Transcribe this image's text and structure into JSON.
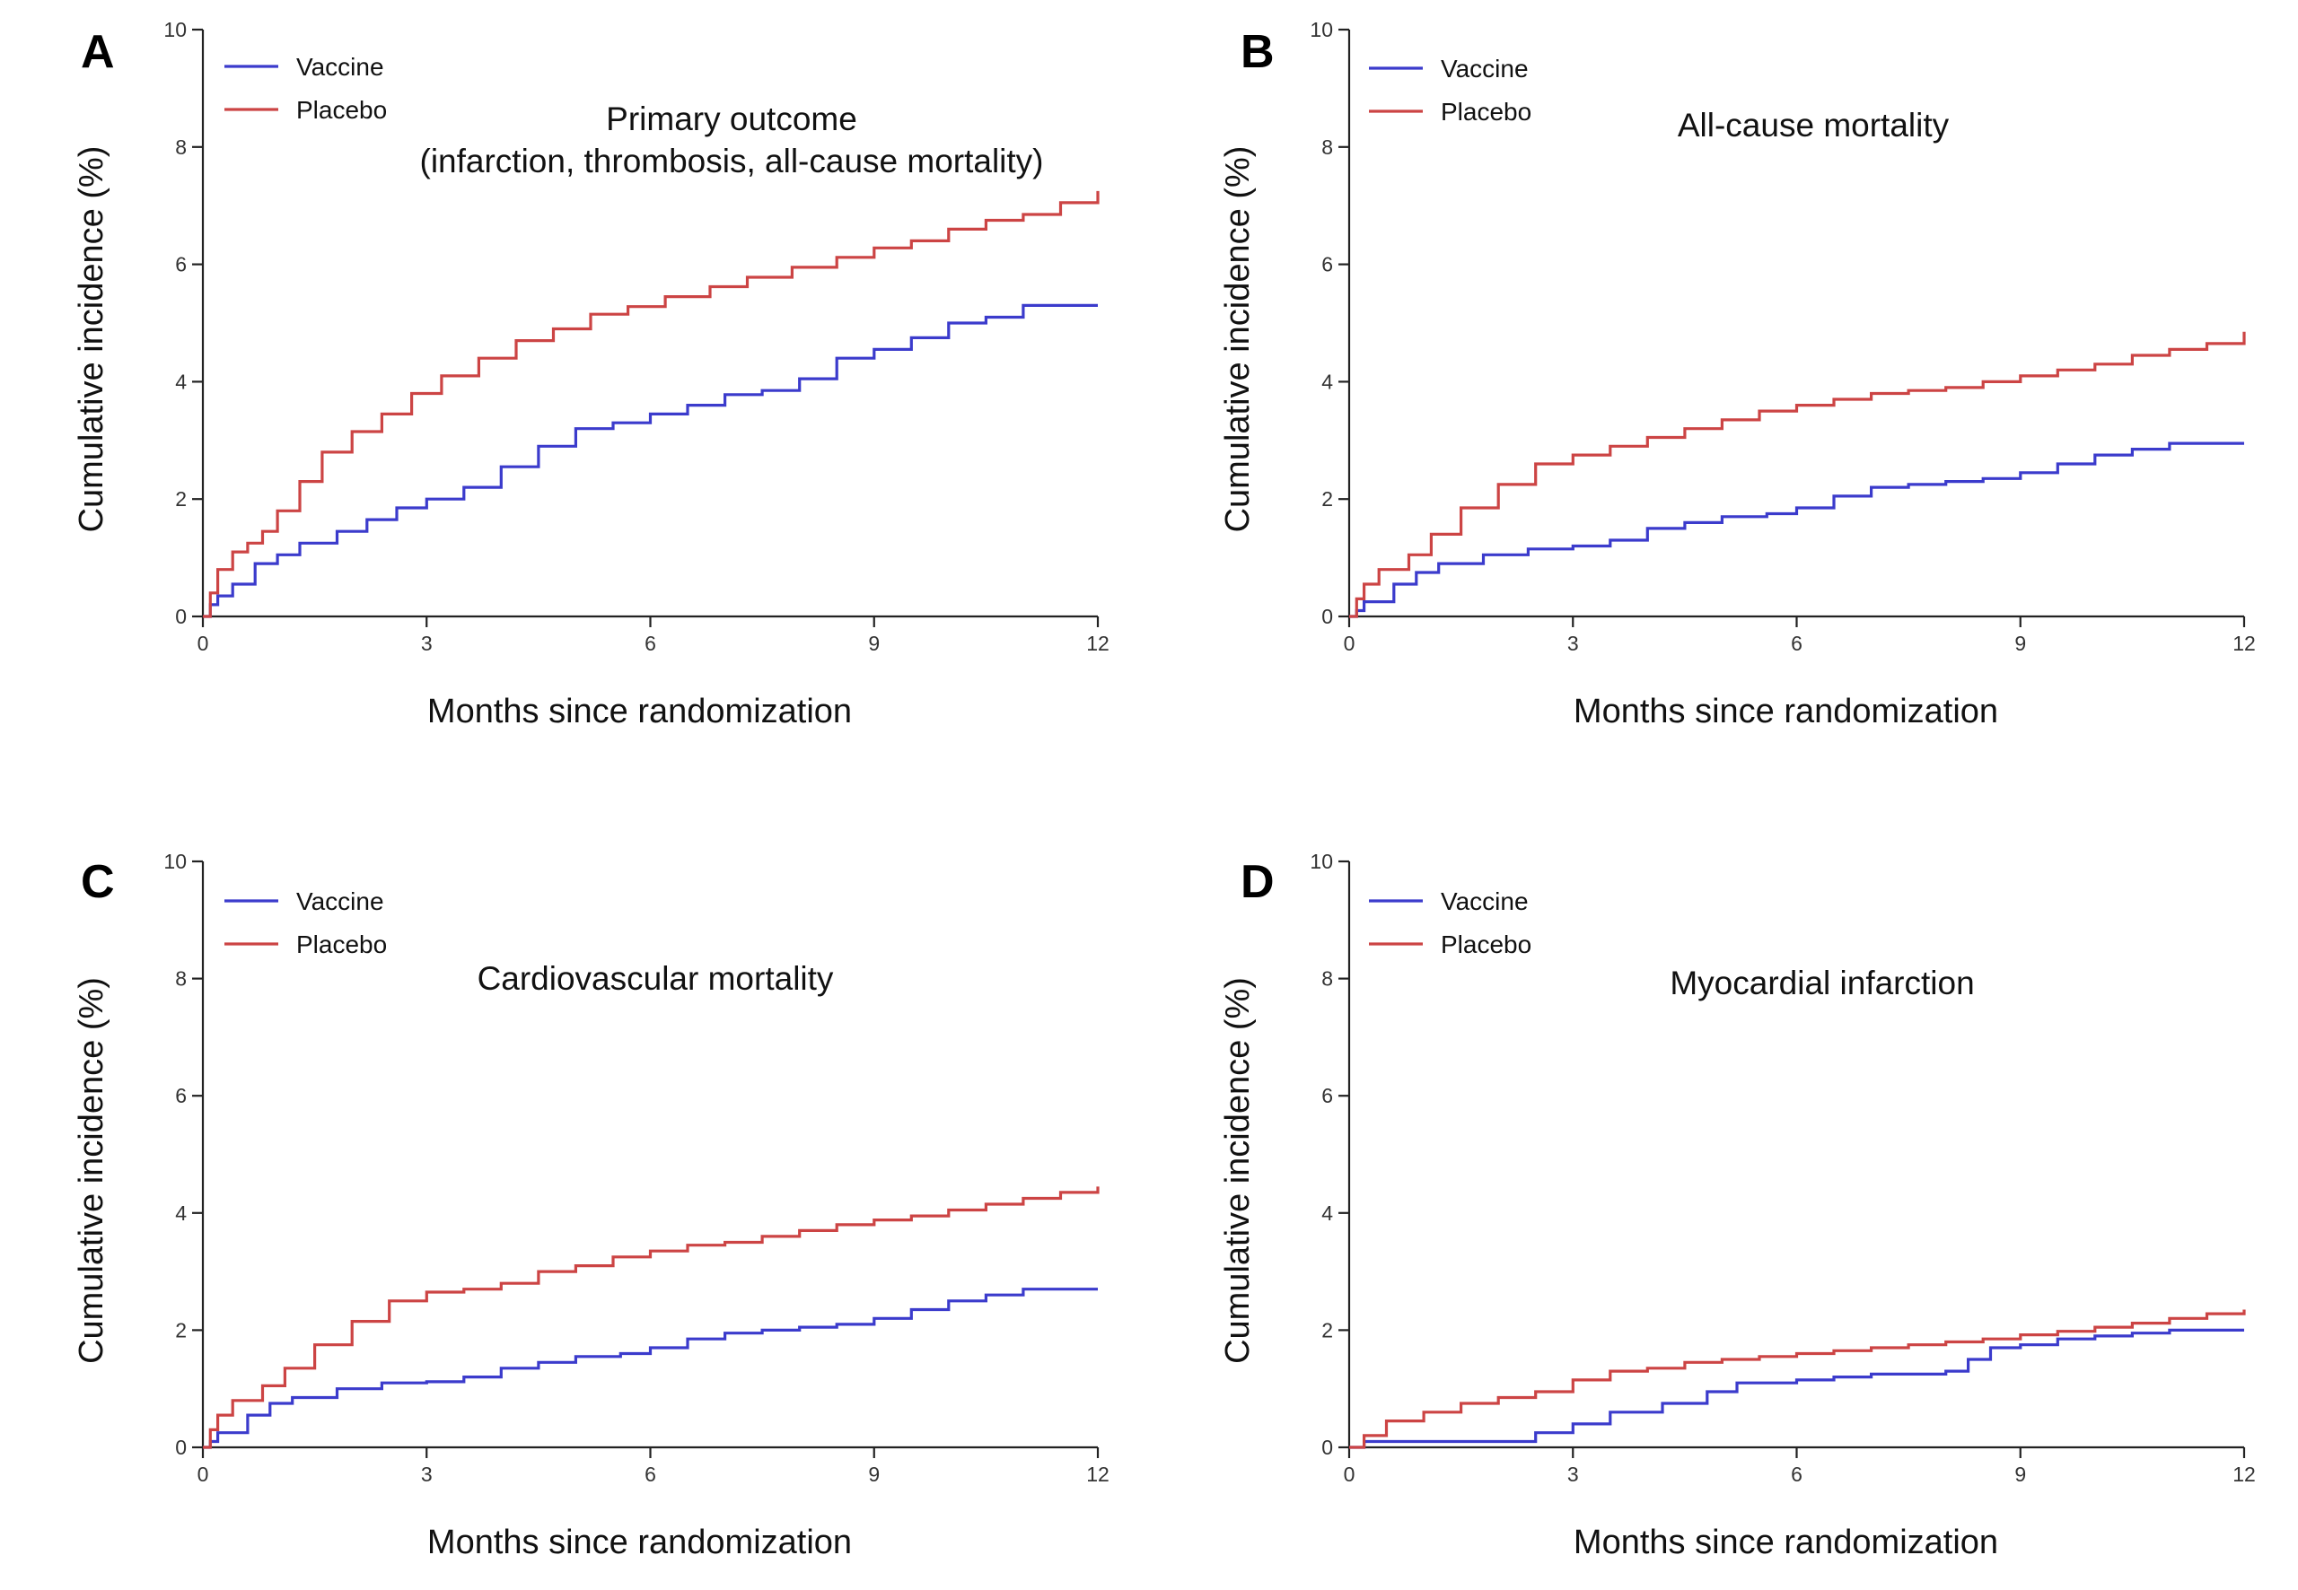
{
  "figure": {
    "colors": {
      "vaccine": "#3b3bcc",
      "placebo": "#cc4444",
      "axis": "#222222"
    }
  },
  "chart_data": [
    {
      "panel": "A",
      "type": "line",
      "title_lines": [
        "Primary outcome",
        "(infarction, thrombosis, all-cause mortality)"
      ],
      "xlabel": "Months since randomization",
      "ylabel": "Cumulative incidence (%)",
      "xlim": [
        0,
        12
      ],
      "ylim": [
        0,
        10
      ],
      "xticks": [
        0,
        3,
        6,
        9,
        12
      ],
      "yticks": [
        0,
        2,
        4,
        6,
        8,
        10
      ],
      "grid": false,
      "legend_position": "top-left",
      "series": [
        {
          "name": "Vaccine",
          "color": "#3b3bcc",
          "x": [
            0,
            0.1,
            0.2,
            0.4,
            0.7,
            1.0,
            1.3,
            1.8,
            2.2,
            2.6,
            3.0,
            3.5,
            4.0,
            4.5,
            5.0,
            5.5,
            6.0,
            6.5,
            7.0,
            7.5,
            8.0,
            8.5,
            9.0,
            9.5,
            10.0,
            10.5,
            11.0,
            12.0
          ],
          "y": [
            0,
            0.2,
            0.35,
            0.55,
            0.9,
            1.05,
            1.25,
            1.45,
            1.65,
            1.85,
            2.0,
            2.2,
            2.55,
            2.9,
            3.2,
            3.3,
            3.45,
            3.6,
            3.78,
            3.85,
            4.05,
            4.4,
            4.55,
            4.75,
            5.0,
            5.1,
            5.3,
            5.3
          ]
        },
        {
          "name": "Placebo",
          "color": "#cc4444",
          "x": [
            0,
            0.1,
            0.2,
            0.4,
            0.6,
            0.8,
            1.0,
            1.3,
            1.6,
            2.0,
            2.4,
            2.8,
            3.2,
            3.7,
            4.2,
            4.7,
            5.2,
            5.7,
            6.2,
            6.8,
            7.3,
            7.9,
            8.5,
            9.0,
            9.5,
            10.0,
            10.5,
            11.0,
            11.5,
            12.0
          ],
          "y": [
            0,
            0.4,
            0.8,
            1.1,
            1.25,
            1.45,
            1.8,
            2.3,
            2.8,
            3.15,
            3.45,
            3.8,
            4.1,
            4.4,
            4.7,
            4.9,
            5.15,
            5.28,
            5.45,
            5.62,
            5.78,
            5.95,
            6.12,
            6.28,
            6.4,
            6.6,
            6.75,
            6.85,
            7.05,
            7.25
          ]
        }
      ]
    },
    {
      "panel": "B",
      "type": "line",
      "title_lines": [
        "All-cause mortality"
      ],
      "xlabel": "Months since randomization",
      "ylabel": "Cumulative incidence (%)",
      "xlim": [
        0,
        12
      ],
      "ylim": [
        0,
        10
      ],
      "xticks": [
        0,
        3,
        6,
        9,
        12
      ],
      "yticks": [
        0,
        2,
        4,
        6,
        8,
        10
      ],
      "grid": false,
      "legend_position": "top-left",
      "series": [
        {
          "name": "Vaccine",
          "color": "#3b3bcc",
          "x": [
            0,
            0.1,
            0.2,
            0.6,
            0.9,
            1.2,
            1.8,
            2.4,
            3.0,
            3.5,
            4.0,
            4.5,
            5.0,
            5.6,
            6.0,
            6.5,
            7.0,
            7.5,
            8.0,
            8.5,
            9.0,
            9.5,
            10.0,
            10.5,
            11.0,
            12.0
          ],
          "y": [
            0,
            0.1,
            0.25,
            0.55,
            0.75,
            0.9,
            1.05,
            1.15,
            1.2,
            1.3,
            1.5,
            1.6,
            1.7,
            1.75,
            1.85,
            2.05,
            2.2,
            2.25,
            2.3,
            2.35,
            2.45,
            2.6,
            2.75,
            2.85,
            2.95,
            2.95
          ]
        },
        {
          "name": "Placebo",
          "color": "#cc4444",
          "x": [
            0,
            0.1,
            0.2,
            0.4,
            0.8,
            1.1,
            1.5,
            2.0,
            2.5,
            3.0,
            3.5,
            4.0,
            4.5,
            5.0,
            5.5,
            6.0,
            6.5,
            7.0,
            7.5,
            8.0,
            8.5,
            9.0,
            9.5,
            10.0,
            10.5,
            11.0,
            11.5,
            12.0
          ],
          "y": [
            0,
            0.3,
            0.55,
            0.8,
            1.05,
            1.4,
            1.85,
            2.25,
            2.6,
            2.75,
            2.9,
            3.05,
            3.2,
            3.35,
            3.5,
            3.6,
            3.7,
            3.8,
            3.85,
            3.9,
            4.0,
            4.1,
            4.2,
            4.3,
            4.45,
            4.55,
            4.65,
            4.85
          ]
        }
      ]
    },
    {
      "panel": "C",
      "type": "line",
      "title_lines": [
        "Cardiovascular mortality"
      ],
      "xlabel": "Months since randomization",
      "ylabel": "Cumulative incidence (%)",
      "xlim": [
        0,
        12
      ],
      "ylim": [
        0,
        10
      ],
      "xticks": [
        0,
        3,
        6,
        9,
        12
      ],
      "yticks": [
        0,
        2,
        4,
        6,
        8,
        10
      ],
      "grid": false,
      "legend_position": "top-left",
      "series": [
        {
          "name": "Vaccine",
          "color": "#3b3bcc",
          "x": [
            0,
            0.1,
            0.2,
            0.6,
            0.9,
            1.2,
            1.8,
            2.4,
            3.0,
            3.5,
            4.0,
            4.5,
            5.0,
            5.6,
            6.0,
            6.5,
            7.0,
            7.5,
            8.0,
            8.5,
            9.0,
            9.5,
            10.0,
            10.5,
            11.0,
            12.0
          ],
          "y": [
            0,
            0.1,
            0.25,
            0.55,
            0.75,
            0.85,
            1.0,
            1.1,
            1.12,
            1.2,
            1.35,
            1.45,
            1.55,
            1.6,
            1.7,
            1.85,
            1.95,
            2.0,
            2.05,
            2.1,
            2.2,
            2.35,
            2.5,
            2.6,
            2.7,
            2.7
          ]
        },
        {
          "name": "Placebo",
          "color": "#cc4444",
          "x": [
            0,
            0.1,
            0.2,
            0.4,
            0.8,
            1.1,
            1.5,
            2.0,
            2.5,
            3.0,
            3.5,
            4.0,
            4.5,
            5.0,
            5.5,
            6.0,
            6.5,
            7.0,
            7.5,
            8.0,
            8.5,
            9.0,
            9.5,
            10.0,
            10.5,
            11.0,
            11.5,
            12.0
          ],
          "y": [
            0,
            0.3,
            0.55,
            0.8,
            1.05,
            1.35,
            1.75,
            2.15,
            2.5,
            2.65,
            2.7,
            2.8,
            3.0,
            3.1,
            3.25,
            3.35,
            3.45,
            3.5,
            3.6,
            3.7,
            3.8,
            3.88,
            3.95,
            4.05,
            4.15,
            4.25,
            4.35,
            4.45
          ]
        }
      ]
    },
    {
      "panel": "D",
      "type": "line",
      "title_lines": [
        "Myocardial infarction"
      ],
      "xlabel": "Months since randomization",
      "ylabel": "Cumulative incidence (%)",
      "xlim": [
        0,
        12
      ],
      "ylim": [
        0,
        10
      ],
      "xticks": [
        0,
        3,
        6,
        9,
        12
      ],
      "yticks": [
        0,
        2,
        4,
        6,
        8,
        10
      ],
      "grid": false,
      "legend_position": "top-left",
      "series": [
        {
          "name": "Vaccine",
          "color": "#3b3bcc",
          "x": [
            0,
            0.2,
            2.2,
            2.5,
            3.0,
            3.5,
            4.2,
            4.8,
            5.2,
            6.0,
            6.5,
            7.0,
            7.5,
            8.0,
            8.3,
            8.6,
            9.0,
            9.5,
            10.0,
            10.5,
            11.0,
            12.0
          ],
          "y": [
            0,
            0.1,
            0.1,
            0.25,
            0.4,
            0.6,
            0.75,
            0.95,
            1.1,
            1.15,
            1.2,
            1.25,
            1.25,
            1.3,
            1.5,
            1.7,
            1.75,
            1.85,
            1.9,
            1.95,
            2.0,
            2.0
          ]
        },
        {
          "name": "Placebo",
          "color": "#cc4444",
          "x": [
            0,
            0.2,
            0.5,
            1.0,
            1.5,
            2.0,
            2.5,
            3.0,
            3.5,
            4.0,
            4.5,
            5.0,
            5.5,
            6.0,
            6.5,
            7.0,
            7.5,
            8.0,
            8.5,
            9.0,
            9.5,
            10.0,
            10.5,
            11.0,
            11.5,
            12.0
          ],
          "y": [
            0,
            0.2,
            0.45,
            0.6,
            0.75,
            0.85,
            0.95,
            1.15,
            1.3,
            1.35,
            1.45,
            1.5,
            1.55,
            1.6,
            1.65,
            1.7,
            1.75,
            1.8,
            1.85,
            1.92,
            1.98,
            2.05,
            2.12,
            2.2,
            2.28,
            2.35
          ]
        }
      ]
    }
  ]
}
